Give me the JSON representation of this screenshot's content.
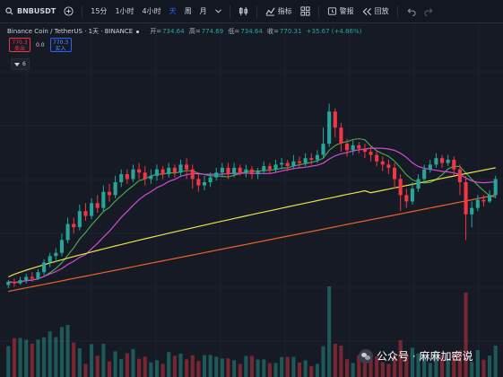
{
  "toolbar": {
    "symbol": "BNBUSDT",
    "intervals": [
      "15分",
      "1小时",
      "4小时",
      "天",
      "周",
      "月"
    ],
    "active_interval": "天",
    "indicators_label": "指标",
    "alert_label": "警报",
    "replay_label": "回放"
  },
  "header": {
    "title": "Binance Coin / TetherUS · 1天 · BINANCE",
    "ohlc": {
      "open_label": "开=",
      "open": "734.64",
      "high_label": "高=",
      "high": "774.69",
      "low_label": "低=",
      "low": "734.64",
      "close_label": "收=",
      "close": "770.31",
      "change": "+35.67 (+4.86%)"
    }
  },
  "quote": {
    "sell_price": "770.3",
    "sell_label": "卖出",
    "spread": "0.0",
    "buy_price": "770.3",
    "buy_label": "买入"
  },
  "indicator_counter": "6",
  "watermark": {
    "text": "公众号 · 麻麻加密说"
  },
  "colors": {
    "up": "#26a69a",
    "down": "#f23645",
    "ma_short": "#4caf50",
    "ma_mid": "#d14bd8",
    "ma_long": "#ebe24a",
    "ma_xlong": "#e8632a",
    "accent": "#2962ff"
  },
  "chart_data": {
    "type": "candlestick",
    "y_scale": "price (no axis labels visible)",
    "price_points": {
      "last_close": 770.31,
      "day_open": 734.64,
      "day_high": 774.69,
      "day_low": 734.64
    },
    "candle_shape": [
      [
        52,
        54,
        50,
        55
      ],
      [
        54,
        53,
        51,
        56
      ],
      [
        53,
        55,
        52,
        57
      ],
      [
        55,
        57,
        53,
        59
      ],
      [
        57,
        56,
        54,
        60
      ],
      [
        56,
        60,
        55,
        62
      ],
      [
        60,
        66,
        58,
        68
      ],
      [
        66,
        70,
        63,
        72
      ],
      [
        70,
        72,
        66,
        75
      ],
      [
        72,
        80,
        70,
        84
      ],
      [
        80,
        90,
        78,
        94
      ],
      [
        90,
        88,
        84,
        94
      ],
      [
        88,
        98,
        86,
        102
      ],
      [
        98,
        95,
        92,
        103
      ],
      [
        95,
        103,
        93,
        106
      ],
      [
        103,
        100,
        97,
        108
      ],
      [
        100,
        110,
        98,
        114
      ],
      [
        110,
        108,
        104,
        115
      ],
      [
        108,
        116,
        106,
        120
      ],
      [
        116,
        121,
        113,
        124
      ],
      [
        121,
        118,
        115,
        124
      ],
      [
        118,
        124,
        116,
        127
      ],
      [
        124,
        122,
        118,
        128
      ],
      [
        122,
        118,
        114,
        126
      ],
      [
        118,
        120,
        115,
        124
      ],
      [
        120,
        124,
        117,
        127
      ],
      [
        124,
        121,
        118,
        126
      ],
      [
        121,
        125,
        119,
        128
      ],
      [
        125,
        122,
        119,
        127
      ],
      [
        122,
        127,
        120,
        130
      ],
      [
        127,
        124,
        118,
        131
      ],
      [
        124,
        118,
        112,
        127
      ],
      [
        118,
        114,
        110,
        121
      ],
      [
        114,
        116,
        111,
        120
      ],
      [
        116,
        119,
        113,
        122
      ],
      [
        119,
        122,
        117,
        125
      ],
      [
        122,
        125,
        119,
        128
      ],
      [
        125,
        121,
        118,
        128
      ],
      [
        121,
        125,
        119,
        128
      ],
      [
        125,
        122,
        120,
        127
      ],
      [
        122,
        124,
        119,
        127
      ],
      [
        124,
        121,
        118,
        126
      ],
      [
        121,
        123,
        118,
        125
      ],
      [
        123,
        126,
        121,
        129
      ],
      [
        126,
        124,
        121,
        128
      ],
      [
        124,
        127,
        122,
        130
      ],
      [
        127,
        128,
        124,
        131
      ],
      [
        128,
        126,
        123,
        130
      ],
      [
        126,
        129,
        124,
        133
      ],
      [
        129,
        128,
        125,
        132
      ],
      [
        128,
        131,
        126,
        134
      ],
      [
        131,
        130,
        127,
        134
      ],
      [
        130,
        133,
        128,
        136
      ],
      [
        133,
        140,
        131,
        150
      ],
      [
        140,
        160,
        138,
        165
      ],
      [
        160,
        150,
        144,
        162
      ],
      [
        150,
        140,
        135,
        153
      ],
      [
        140,
        136,
        132,
        143
      ],
      [
        136,
        139,
        133,
        142
      ],
      [
        139,
        137,
        134,
        141
      ],
      [
        137,
        135,
        131,
        140
      ],
      [
        135,
        133,
        129,
        138
      ],
      [
        133,
        129,
        126,
        136
      ],
      [
        129,
        127,
        123,
        132
      ],
      [
        127,
        125,
        121,
        130
      ],
      [
        125,
        118,
        112,
        128
      ],
      [
        118,
        108,
        98,
        121
      ],
      [
        108,
        104,
        100,
        112
      ],
      [
        104,
        112,
        102,
        116
      ],
      [
        112,
        118,
        110,
        121
      ],
      [
        118,
        124,
        116,
        127
      ],
      [
        124,
        127,
        122,
        130
      ],
      [
        127,
        131,
        125,
        134
      ],
      [
        131,
        128,
        125,
        133
      ],
      [
        128,
        130,
        126,
        133
      ],
      [
        130,
        124,
        120,
        132
      ],
      [
        124,
        116,
        108,
        127
      ],
      [
        116,
        96,
        80,
        120
      ],
      [
        96,
        100,
        88,
        104
      ],
      [
        100,
        105,
        98,
        108
      ],
      [
        105,
        104,
        101,
        108
      ],
      [
        104,
        108,
        103,
        111
      ],
      [
        108,
        118,
        106,
        120
      ]
    ]
  }
}
